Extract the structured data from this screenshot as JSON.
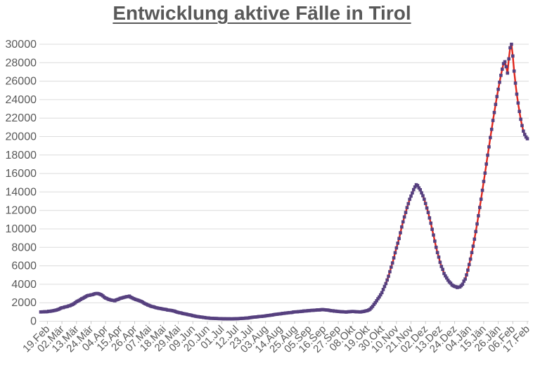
{
  "chart_data": {
    "type": "line",
    "title": "Entwicklung aktive Fälle in Tirol",
    "xlabel": "",
    "ylabel": "",
    "ylim": [
      0,
      30000
    ],
    "y_tick_step": 2000,
    "y_tick_labels": [
      "0",
      "2000",
      "4000",
      "6000",
      "8000",
      "10000",
      "12000",
      "14000",
      "16000",
      "18000",
      "20000",
      "22000",
      "24000",
      "26000",
      "28000",
      "30000"
    ],
    "x_tick_labels": [
      "19.Feb",
      "02.Mär",
      "13.Mär",
      "24.Mär",
      "04.Apr",
      "15.Apr",
      "26.Apr",
      "07.Mai",
      "18.Mai",
      "29.Mai",
      "09.Jun",
      "20.Jun",
      "01.Jul",
      "12.Jul",
      "23.Jul",
      "03.Aug",
      "14.Aug",
      "25.Aug",
      "05.Sep",
      "16.Sep",
      "27.Sep",
      "08.Okt",
      "19.Okt",
      "30.Okt",
      "10.Nov",
      "21.Nov",
      "02.Dez",
      "13.Dez",
      "24.Dez",
      "04.Jän",
      "15.Jän",
      "26.Jän",
      "06.Feb",
      "17.Feb"
    ],
    "x_tick_interval_days": 11,
    "grid": "horizontal",
    "legend": "none",
    "colors": {
      "line": "#e0261c",
      "marker": "#56407f",
      "gridline": "#dcdcdc",
      "axis_tick": "#c9c9c9",
      "axis_text": "#595959",
      "title_text": "#595959",
      "background": "#ffffff"
    },
    "series": [
      {
        "name": "aktive Fälle in Tirol",
        "marker": "square",
        "x_unit": "days_relative_to_first_tick_label",
        "sampling": "daily values; linear interpolation between anchor points below",
        "day_range": [
          -5,
          363
        ],
        "anchor_points": [
          [
            -5,
            1000
          ],
          [
            -2,
            1020
          ],
          [
            0,
            1050
          ],
          [
            3,
            1100
          ],
          [
            6,
            1180
          ],
          [
            9,
            1320
          ],
          [
            11,
            1450
          ],
          [
            14,
            1550
          ],
          [
            17,
            1680
          ],
          [
            20,
            1880
          ],
          [
            22,
            2100
          ],
          [
            25,
            2350
          ],
          [
            28,
            2600
          ],
          [
            31,
            2780
          ],
          [
            33,
            2860
          ],
          [
            36,
            2950
          ],
          [
            38,
            3000
          ],
          [
            40,
            2900
          ],
          [
            42,
            2740
          ],
          [
            44,
            2500
          ],
          [
            47,
            2340
          ],
          [
            51,
            2230
          ],
          [
            54,
            2400
          ],
          [
            57,
            2560
          ],
          [
            60,
            2680
          ],
          [
            62,
            2700
          ],
          [
            64,
            2560
          ],
          [
            66,
            2400
          ],
          [
            69,
            2260
          ],
          [
            72,
            2080
          ],
          [
            74,
            1900
          ],
          [
            77,
            1700
          ],
          [
            80,
            1560
          ],
          [
            83,
            1450
          ],
          [
            86,
            1360
          ],
          [
            88,
            1300
          ],
          [
            91,
            1220
          ],
          [
            94,
            1150
          ],
          [
            97,
            1050
          ],
          [
            99,
            950
          ],
          [
            102,
            860
          ],
          [
            105,
            760
          ],
          [
            108,
            670
          ],
          [
            110,
            600
          ],
          [
            113,
            520
          ],
          [
            116,
            450
          ],
          [
            119,
            390
          ],
          [
            121,
            350
          ],
          [
            124,
            320
          ],
          [
            127,
            300
          ],
          [
            130,
            280
          ],
          [
            132,
            270
          ],
          [
            135,
            260
          ],
          [
            138,
            255
          ],
          [
            141,
            260
          ],
          [
            143,
            270
          ],
          [
            146,
            290
          ],
          [
            149,
            320
          ],
          [
            152,
            360
          ],
          [
            154,
            400
          ],
          [
            157,
            450
          ],
          [
            160,
            500
          ],
          [
            163,
            540
          ],
          [
            165,
            575
          ],
          [
            168,
            630
          ],
          [
            170,
            680
          ],
          [
            173,
            740
          ],
          [
            176,
            800
          ],
          [
            179,
            855
          ],
          [
            182,
            905
          ],
          [
            185,
            960
          ],
          [
            187,
            1000
          ],
          [
            190,
            1040
          ],
          [
            193,
            1080
          ],
          [
            196,
            1120
          ],
          [
            198,
            1150
          ],
          [
            201,
            1185
          ],
          [
            204,
            1210
          ],
          [
            207,
            1235
          ],
          [
            209,
            1250
          ],
          [
            211,
            1225
          ],
          [
            214,
            1150
          ],
          [
            217,
            1100
          ],
          [
            220,
            1055
          ],
          [
            223,
            1020
          ],
          [
            226,
            1000
          ],
          [
            229,
            1030
          ],
          [
            231,
            1050
          ],
          [
            234,
            1020
          ],
          [
            237,
            1005
          ],
          [
            240,
            1080
          ],
          [
            242,
            1150
          ],
          [
            244,
            1300
          ],
          [
            246,
            1600
          ],
          [
            248,
            2000
          ],
          [
            250,
            2420
          ],
          [
            252,
            2850
          ],
          [
            254,
            3400
          ],
          [
            256,
            4050
          ],
          [
            258,
            4900
          ],
          [
            260,
            5850
          ],
          [
            262,
            6850
          ],
          [
            264,
            7900
          ],
          [
            266,
            9000
          ],
          [
            268,
            10200
          ],
          [
            270,
            11300
          ],
          [
            272,
            12300
          ],
          [
            274,
            13200
          ],
          [
            276,
            13900
          ],
          [
            278,
            14550
          ],
          [
            279,
            14800
          ],
          [
            280,
            14700
          ],
          [
            282,
            14250
          ],
          [
            284,
            13600
          ],
          [
            286,
            12750
          ],
          [
            288,
            11800
          ],
          [
            290,
            10600
          ],
          [
            292,
            9300
          ],
          [
            294,
            8000
          ],
          [
            296,
            6900
          ],
          [
            298,
            5950
          ],
          [
            300,
            5200
          ],
          [
            302,
            4650
          ],
          [
            304,
            4250
          ],
          [
            306,
            3950
          ],
          [
            308,
            3750
          ],
          [
            310,
            3650
          ],
          [
            312,
            3720
          ],
          [
            314,
            4000
          ],
          [
            316,
            4600
          ],
          [
            318,
            5500
          ],
          [
            320,
            6700
          ],
          [
            322,
            8100
          ],
          [
            324,
            9700
          ],
          [
            326,
            11400
          ],
          [
            328,
            13200
          ],
          [
            330,
            15100
          ],
          [
            332,
            17000
          ],
          [
            334,
            18900
          ],
          [
            336,
            20800
          ],
          [
            338,
            22600
          ],
          [
            340,
            24300
          ],
          [
            342,
            25900
          ],
          [
            344,
            27300
          ],
          [
            345,
            27900
          ],
          [
            346,
            28100
          ],
          [
            347,
            27600
          ],
          [
            348,
            26900
          ],
          [
            349,
            28400
          ],
          [
            350,
            29600
          ],
          [
            351,
            30000
          ],
          [
            352,
            28700
          ],
          [
            353,
            27100
          ],
          [
            354,
            25800
          ],
          [
            355,
            24600
          ],
          [
            356,
            23600
          ],
          [
            357,
            22700
          ],
          [
            358,
            21900
          ],
          [
            359,
            21200
          ],
          [
            360,
            20600
          ],
          [
            361,
            20200
          ],
          [
            362,
            19950
          ],
          [
            363,
            19800
          ]
        ]
      }
    ]
  }
}
